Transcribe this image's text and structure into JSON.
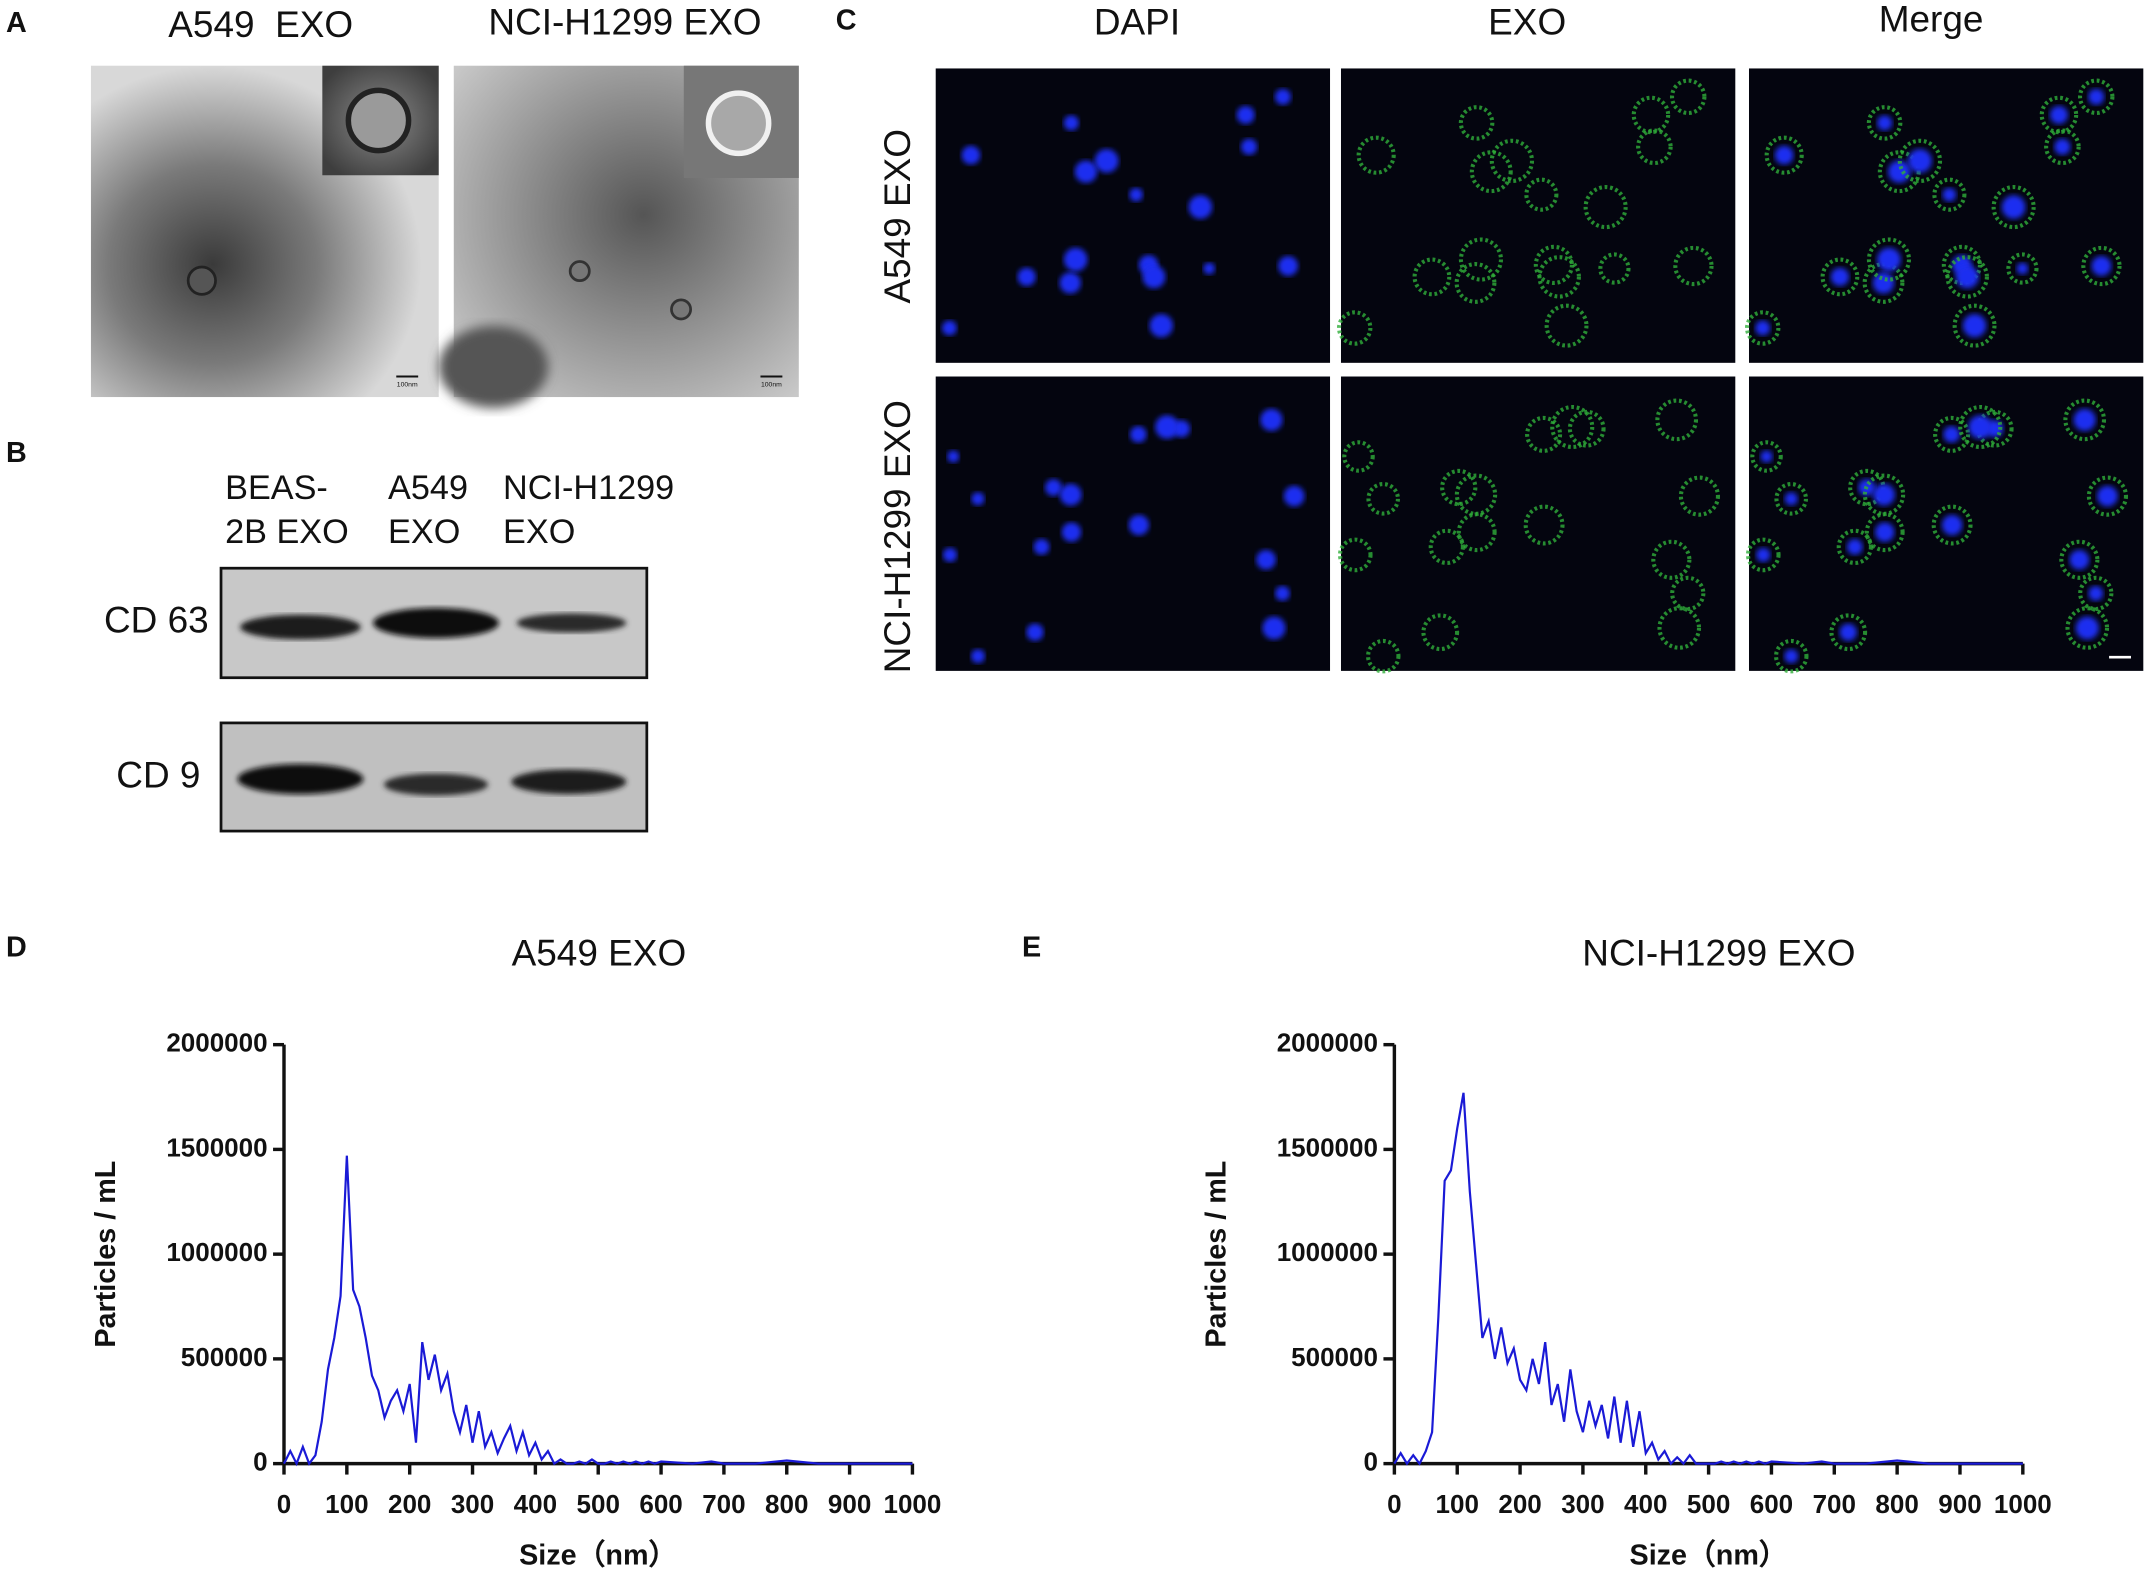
{
  "panel_labels": [
    "A",
    "B",
    "C",
    "D",
    "E"
  ],
  "tem": {
    "titles": [
      "A549  EXO",
      "NCI-H1299 EXO"
    ],
    "scale_label": "100nm"
  },
  "blot": {
    "lanes": [
      [
        "BEAS-",
        "2B EXO"
      ],
      [
        "A549",
        "EXO"
      ],
      [
        "NCI-H1299",
        "EXO"
      ]
    ],
    "rows": [
      "CD 63",
      "CD 9"
    ]
  },
  "fluorescence": {
    "columns": [
      "DAPI",
      "EXO",
      "Merge"
    ],
    "rows": [
      "A549 EXO",
      "NCI-H1299 EXO"
    ]
  },
  "chart_data": [
    {
      "type": "line",
      "title": "A549 EXO",
      "x_label": "Size（nm）",
      "y_label": "Particles / mL",
      "color": "#1a1ad6",
      "x": [
        0,
        10,
        20,
        30,
        40,
        50,
        60,
        70,
        80,
        90,
        100,
        110,
        120,
        130,
        140,
        150,
        160,
        170,
        180,
        190,
        200,
        210,
        220,
        230,
        240,
        250,
        260,
        270,
        280,
        290,
        300,
        310,
        320,
        330,
        340,
        350,
        360,
        370,
        380,
        390,
        400,
        410,
        420,
        430,
        440,
        450,
        460,
        470,
        480,
        490,
        500,
        510,
        520,
        530,
        540,
        550,
        560,
        570,
        580,
        590,
        600,
        650,
        680,
        700,
        750,
        800,
        850,
        900,
        950,
        1000
      ],
      "values": [
        0,
        60000,
        0,
        80000,
        0,
        40000,
        200000,
        450000,
        600000,
        800000,
        1470000,
        830000,
        750000,
        600000,
        420000,
        350000,
        220000,
        300000,
        350000,
        250000,
        380000,
        100000,
        580000,
        400000,
        520000,
        350000,
        430000,
        250000,
        150000,
        280000,
        100000,
        250000,
        80000,
        150000,
        50000,
        120000,
        180000,
        60000,
        150000,
        40000,
        100000,
        20000,
        60000,
        0,
        20000,
        0,
        0,
        10000,
        0,
        20000,
        0,
        0,
        10000,
        0,
        10000,
        0,
        10000,
        0,
        10000,
        0,
        10000,
        0,
        10000,
        0,
        0,
        15000,
        0,
        0,
        0,
        0
      ],
      "xlim": [
        0,
        1000
      ],
      "xticks": [
        0,
        100,
        200,
        300,
        400,
        500,
        600,
        700,
        800,
        900,
        1000
      ],
      "ylim": [
        0,
        2000000
      ],
      "yticks": [
        0,
        500000,
        1000000,
        1500000,
        2000000
      ]
    },
    {
      "type": "line",
      "title": "NCI-H1299 EXO",
      "x_label": "Size（nm）",
      "y_label": "Particles / mL",
      "color": "#1a1ad6",
      "x": [
        0,
        10,
        20,
        30,
        40,
        50,
        60,
        70,
        80,
        90,
        100,
        110,
        120,
        130,
        140,
        150,
        160,
        170,
        180,
        190,
        200,
        210,
        220,
        230,
        240,
        250,
        260,
        270,
        280,
        290,
        300,
        310,
        320,
        330,
        340,
        350,
        360,
        370,
        380,
        390,
        400,
        410,
        420,
        430,
        440,
        450,
        460,
        470,
        480,
        490,
        500,
        510,
        520,
        530,
        540,
        550,
        560,
        570,
        580,
        590,
        600,
        650,
        680,
        700,
        750,
        800,
        850,
        900,
        950,
        1000
      ],
      "values": [
        0,
        50000,
        0,
        40000,
        0,
        60000,
        150000,
        700000,
        1350000,
        1400000,
        1600000,
        1770000,
        1300000,
        950000,
        600000,
        680000,
        500000,
        650000,
        480000,
        550000,
        400000,
        350000,
        500000,
        380000,
        580000,
        280000,
        380000,
        200000,
        450000,
        250000,
        150000,
        300000,
        180000,
        280000,
        120000,
        320000,
        100000,
        300000,
        80000,
        250000,
        50000,
        100000,
        20000,
        60000,
        0,
        30000,
        0,
        40000,
        0,
        0,
        0,
        0,
        10000,
        0,
        10000,
        0,
        10000,
        0,
        10000,
        0,
        10000,
        0,
        10000,
        0,
        0,
        15000,
        0,
        0,
        0,
        0
      ],
      "xlim": [
        0,
        1000
      ],
      "xticks": [
        0,
        100,
        200,
        300,
        400,
        500,
        600,
        700,
        800,
        900,
        1000
      ],
      "ylim": [
        0,
        2000000
      ],
      "yticks": [
        0,
        500000,
        1000000,
        1500000,
        2000000
      ]
    }
  ]
}
